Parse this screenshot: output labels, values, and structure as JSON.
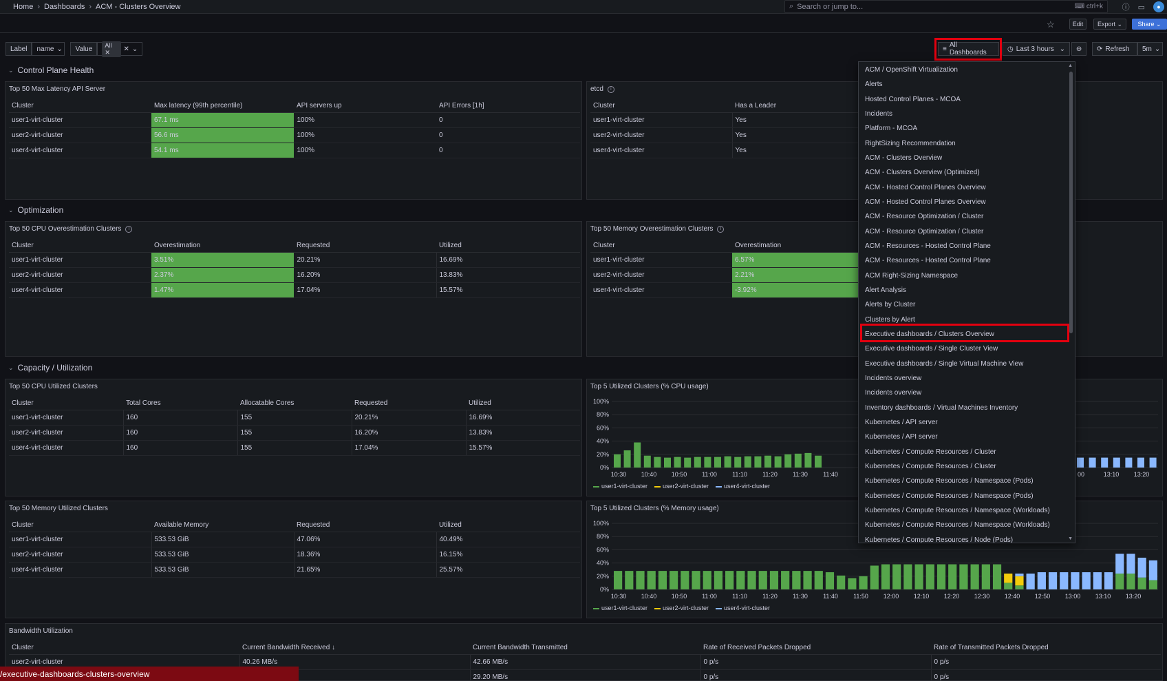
{
  "breadcrumb": [
    "Home",
    "Dashboards",
    "ACM - Clusters Overview"
  ],
  "search": {
    "placeholder": "Search or jump to...",
    "shortcut": "ctrl+k"
  },
  "toolbar": {
    "edit": "Edit",
    "export": "Export",
    "share": "Share"
  },
  "filters": {
    "label_title": "Label",
    "label_value": "name",
    "value_title": "Value",
    "value_chip": "All"
  },
  "controls": {
    "all_dashboards": "All Dashboards",
    "time_range": "Last 3 hours",
    "refresh": "Refresh",
    "interval": "5m"
  },
  "sections": {
    "control_plane": "Control Plane Health",
    "optimization": "Optimization",
    "capacity": "Capacity / Utilization"
  },
  "panels": {
    "latency": {
      "title": "Top 50 Max Latency API Server",
      "headers": [
        "Cluster",
        "Max latency (99th percentile)",
        "API servers up",
        "API Errors [1h]"
      ],
      "rows": [
        [
          "user1-virt-cluster",
          "67.1 ms",
          "100%",
          "0"
        ],
        [
          "user2-virt-cluster",
          "56.6 ms",
          "100%",
          "0"
        ],
        [
          "user4-virt-cluster",
          "54.1 ms",
          "100%",
          "0"
        ]
      ]
    },
    "etcd": {
      "title": "etcd",
      "headers": [
        "Cluster",
        "Has a Leader"
      ],
      "rows": [
        [
          "user1-virt-cluster",
          "Yes"
        ],
        [
          "user2-virt-cluster",
          "Yes"
        ],
        [
          "user4-virt-cluster",
          "Yes"
        ]
      ]
    },
    "cpu_over": {
      "title": "Top 50 CPU Overestimation Clusters",
      "headers": [
        "Cluster",
        "Overestimation",
        "Requested",
        "Utilized"
      ],
      "rows": [
        [
          "user1-virt-cluster",
          "3.51%",
          "20.21%",
          "16.69%"
        ],
        [
          "user2-virt-cluster",
          "2.37%",
          "16.20%",
          "13.83%"
        ],
        [
          "user4-virt-cluster",
          "1.47%",
          "17.04%",
          "15.57%"
        ]
      ]
    },
    "mem_over": {
      "title": "Top 50 Memory Overestimation Clusters",
      "headers": [
        "Cluster",
        "Overestimation"
      ],
      "rows": [
        [
          "user1-virt-cluster",
          "6.57%"
        ],
        [
          "user2-virt-cluster",
          "2.21%"
        ],
        [
          "user4-virt-cluster",
          "-3.92%"
        ]
      ]
    },
    "cpu_util": {
      "title": "Top 50 CPU Utilized Clusters",
      "headers": [
        "Cluster",
        "Total Cores",
        "Allocatable Cores",
        "Requested",
        "Utilized"
      ],
      "rows": [
        [
          "user1-virt-cluster",
          "160",
          "155",
          "20.21%",
          "16.69%"
        ],
        [
          "user2-virt-cluster",
          "160",
          "155",
          "16.20%",
          "13.83%"
        ],
        [
          "user4-virt-cluster",
          "160",
          "155",
          "17.04%",
          "15.57%"
        ]
      ]
    },
    "mem_util": {
      "title": "Top 50 Memory Utilized Clusters",
      "headers": [
        "Cluster",
        "Available Memory",
        "Requested",
        "Utilized"
      ],
      "rows": [
        [
          "user1-virt-cluster",
          "533.53 GiB",
          "47.06%",
          "40.49%"
        ],
        [
          "user2-virt-cluster",
          "533.53 GiB",
          "18.36%",
          "16.15%"
        ],
        [
          "user4-virt-cluster",
          "533.53 GiB",
          "21.65%",
          "25.57%"
        ]
      ]
    },
    "bandwidth": {
      "title": "Bandwidth Utilization",
      "headers": [
        "Cluster",
        "Current Bandwidth Received",
        "Current Bandwidth Transmitted",
        "Rate of Received Packets Dropped",
        "Rate of Transmitted Packets Dropped"
      ],
      "rows": [
        [
          "user2-virt-cluster",
          "40.26 MB/s",
          "42.66 MB/s",
          "0 p/s",
          "0 p/s"
        ],
        [
          "",
          "",
          "29.20 MB/s",
          "0 p/s",
          "0 p/s"
        ]
      ]
    },
    "cpu_chart_title": "Top 5 Utilized Clusters (% CPU usage)",
    "mem_chart_title": "Top 5 Utilized Clusters (% Memory usage)"
  },
  "chart_data": [
    {
      "type": "bar",
      "title": "Top 5 Utilized Clusters (% CPU usage)",
      "y_ticks": [
        "100%",
        "80%",
        "60%",
        "40%",
        "20%",
        "0%"
      ],
      "ylim": [
        0,
        100
      ],
      "x_ticks_left": [
        "10:30",
        "10:40",
        "10:50",
        "11:00",
        "11:10",
        "11:20",
        "11:30",
        "11:40"
      ],
      "x_ticks_right": [
        "00",
        "13:10",
        "13:20"
      ],
      "legend": [
        "user1-virt-cluster",
        "user2-virt-cluster",
        "user4-virt-cluster"
      ],
      "colors": [
        "#56a64b",
        "#f2cc0c",
        "#8ab8ff"
      ],
      "series": [
        {
          "name": "user1-virt-cluster",
          "values": [
            20,
            26,
            38,
            18,
            16,
            15,
            16,
            15,
            16,
            16,
            16,
            17,
            16,
            17,
            17,
            18,
            17,
            20,
            21,
            22,
            18
          ]
        },
        {
          "name": "user4-virt-cluster",
          "values_right": [
            15,
            15,
            15,
            15,
            15,
            15,
            15
          ]
        }
      ]
    },
    {
      "type": "bar",
      "title": "Top 5 Utilized Clusters (% Memory usage)",
      "y_ticks": [
        "100%",
        "80%",
        "60%",
        "40%",
        "20%",
        "0%"
      ],
      "ylim": [
        0,
        100
      ],
      "x_ticks": [
        "10:30",
        "10:40",
        "10:50",
        "11:00",
        "11:10",
        "11:20",
        "11:30",
        "11:40",
        "11:50",
        "12:00",
        "12:10",
        "12:20",
        "12:30",
        "12:40",
        "12:50",
        "13:00",
        "13:10",
        "13:20"
      ],
      "legend": [
        "user1-virt-cluster",
        "user2-virt-cluster",
        "user4-virt-cluster"
      ],
      "colors": [
        "#56a64b",
        "#f2cc0c",
        "#8ab8ff"
      ],
      "series": [
        {
          "name": "user1-virt-cluster",
          "values": [
            28,
            28,
            28,
            28,
            28,
            28,
            28,
            28,
            28,
            28,
            28,
            28,
            28,
            28,
            28,
            28,
            28,
            28,
            28,
            26,
            21,
            17,
            20,
            36,
            38,
            38,
            38,
            38,
            38,
            38,
            38,
            38,
            38,
            38,
            38,
            10,
            6,
            0,
            0,
            0,
            0,
            0,
            0,
            0,
            0,
            24,
            24,
            18,
            14
          ]
        },
        {
          "name": "user2-virt-cluster",
          "values": [
            0,
            0,
            0,
            0,
            0,
            0,
            0,
            0,
            0,
            0,
            0,
            0,
            0,
            0,
            0,
            0,
            0,
            0,
            0,
            0,
            0,
            0,
            0,
            0,
            0,
            0,
            0,
            0,
            0,
            0,
            0,
            0,
            0,
            0,
            0,
            14,
            14,
            0,
            0,
            0,
            0,
            0,
            0,
            0,
            0,
            0,
            0,
            0,
            0
          ]
        },
        {
          "name": "user4-virt-cluster",
          "values": [
            0,
            0,
            0,
            0,
            0,
            0,
            0,
            0,
            0,
            0,
            0,
            0,
            0,
            0,
            0,
            0,
            0,
            0,
            0,
            0,
            0,
            0,
            0,
            0,
            0,
            0,
            0,
            0,
            0,
            0,
            0,
            0,
            0,
            0,
            0,
            0,
            4,
            24,
            26,
            26,
            26,
            26,
            26,
            26,
            26,
            30,
            30,
            30,
            30
          ]
        }
      ]
    }
  ],
  "dropdown_items": [
    "ACM / OpenShift Virtualization",
    "Alerts",
    "Hosted Control Planes - MCOA",
    "Incidents",
    "Platform - MCOA",
    "RightSizing Recommendation",
    "ACM - Clusters Overview",
    "ACM - Clusters Overview (Optimized)",
    "ACM - Hosted Control Planes Overview",
    "ACM - Hosted Control Planes Overview",
    "ACM - Resource Optimization / Cluster",
    "ACM - Resource Optimization / Cluster",
    "ACM - Resources - Hosted Control Plane",
    "ACM - Resources - Hosted Control Plane",
    "ACM Right-Sizing Namespace",
    "Alert Analysis",
    "Alerts by Cluster",
    "Clusters by Alert",
    "Executive dashboards / Clusters Overview",
    "Executive dashboards / Single Cluster View",
    "Executive dashboards / Single Virtual Machine View",
    "Incidents overview",
    "Incidents overview",
    "Inventory dashboards / Virtual Machines Inventory",
    "Kubernetes / API server",
    "Kubernetes / API server",
    "Kubernetes / Compute Resources / Cluster",
    "Kubernetes / Compute Resources / Cluster",
    "Kubernetes / Compute Resources / Namespace (Pods)",
    "Kubernetes / Compute Resources / Namespace (Pods)",
    "Kubernetes / Compute Resources / Namespace (Workloads)",
    "Kubernetes / Compute Resources / Namespace (Workloads)",
    "Kubernetes / Compute Resources / Node (Pods)"
  ],
  "status_url": "/executive-dashboards-clusters-overview"
}
